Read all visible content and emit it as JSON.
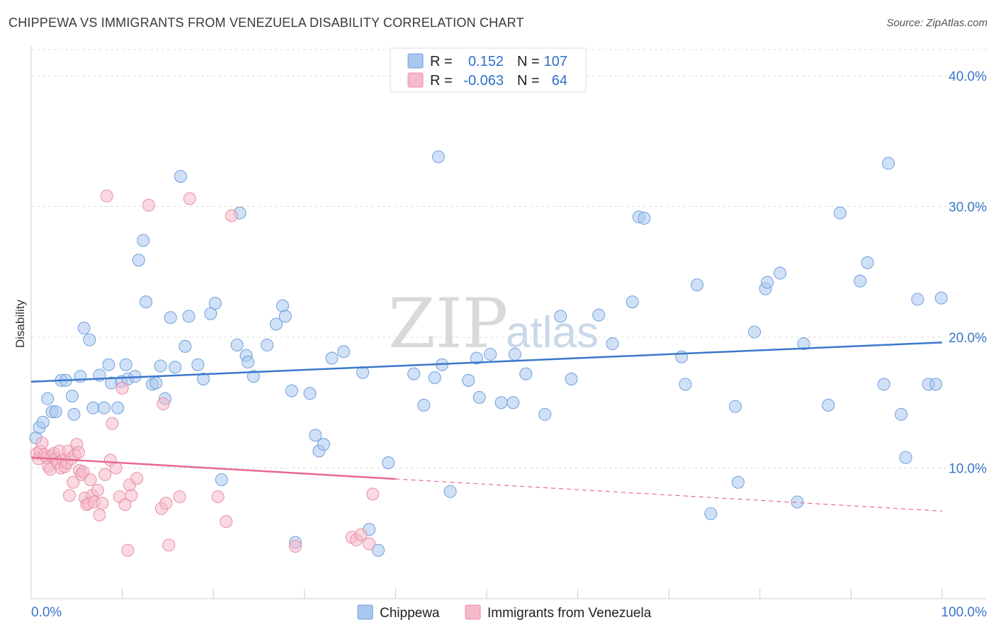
{
  "header": {
    "title": "CHIPPEWA VS IMMIGRANTS FROM VENEZUELA DISABILITY CORRELATION CHART",
    "source": "Source: ZipAtlas.com"
  },
  "watermark": {
    "zip": "ZIP",
    "atlas": "atlas"
  },
  "legend_box": {
    "rows": [
      {
        "r_label": "R =",
        "r_value": "0.152",
        "n_label": "N =",
        "n_value": "107",
        "color": "#a9c8f0"
      },
      {
        "r_label": "R =",
        "r_value": "-0.063",
        "n_label": "N =",
        "n_value": "64",
        "color": "#f6b9cc"
      }
    ]
  },
  "bottom_legend": [
    {
      "label": "Chippewa",
      "color": "#a9c8f0"
    },
    {
      "label": "Immigrants from Venezuela",
      "color": "#f6b9cc"
    }
  ],
  "chart_data": {
    "type": "scatter",
    "title": "CHIPPEWA VS IMMIGRANTS FROM VENEZUELA DISABILITY CORRELATION CHART",
    "xlabel": "",
    "ylabel": "Disability",
    "xlim": [
      0,
      100
    ],
    "ylim": [
      0,
      42
    ],
    "x_tick_labels": [
      "0.0%",
      "100.0%"
    ],
    "y_ticks": [
      10,
      20,
      30,
      40
    ],
    "y_tick_labels": [
      "10.0%",
      "20.0%",
      "30.0%",
      "40.0%"
    ],
    "grid": true,
    "colors": {
      "blue": "#3a78c9",
      "blue_fill": "#a9c8f0",
      "pink": "#e8698f",
      "pink_fill": "#f6b9cc"
    },
    "series": [
      {
        "name": "Chippewa",
        "color": "#3a78c9",
        "trend": {
          "x0": 0,
          "y0": 16.6,
          "x1": 100,
          "y1": 19.6,
          "dashed_from": null
        },
        "points": [
          [
            0.5,
            12.3
          ],
          [
            0.9,
            13.1
          ],
          [
            1.3,
            13.5
          ],
          [
            1.8,
            15.3
          ],
          [
            2.3,
            14.3
          ],
          [
            2.7,
            14.3
          ],
          [
            3.3,
            16.7
          ],
          [
            3.8,
            16.7
          ],
          [
            4.5,
            15.5
          ],
          [
            4.7,
            14.1
          ],
          [
            5.4,
            17.0
          ],
          [
            5.8,
            20.7
          ],
          [
            6.4,
            19.8
          ],
          [
            6.8,
            14.6
          ],
          [
            7.5,
            17.1
          ],
          [
            8.0,
            14.6
          ],
          [
            8.5,
            17.9
          ],
          [
            8.8,
            16.5
          ],
          [
            9.5,
            14.6
          ],
          [
            9.9,
            16.6
          ],
          [
            10.4,
            17.9
          ],
          [
            10.6,
            16.8
          ],
          [
            11.4,
            17.0
          ],
          [
            11.8,
            25.9
          ],
          [
            12.3,
            27.4
          ],
          [
            12.6,
            22.7
          ],
          [
            13.3,
            16.4
          ],
          [
            13.7,
            16.5
          ],
          [
            14.2,
            17.8
          ],
          [
            14.7,
            15.3
          ],
          [
            15.3,
            21.5
          ],
          [
            15.8,
            17.7
          ],
          [
            16.4,
            32.3
          ],
          [
            16.9,
            19.3
          ],
          [
            17.3,
            21.6
          ],
          [
            18.3,
            17.9
          ],
          [
            18.9,
            16.8
          ],
          [
            19.7,
            21.8
          ],
          [
            20.2,
            22.6
          ],
          [
            20.9,
            9.1
          ],
          [
            22.6,
            19.4
          ],
          [
            22.9,
            29.5
          ],
          [
            23.6,
            18.6
          ],
          [
            23.8,
            18.1
          ],
          [
            24.4,
            17.0
          ],
          [
            25.9,
            19.4
          ],
          [
            26.9,
            21.0
          ],
          [
            27.6,
            22.4
          ],
          [
            27.9,
            21.6
          ],
          [
            28.6,
            15.9
          ],
          [
            29.0,
            4.3
          ],
          [
            30.6,
            15.7
          ],
          [
            31.2,
            12.5
          ],
          [
            31.6,
            11.3
          ],
          [
            32.1,
            11.8
          ],
          [
            33.0,
            18.4
          ],
          [
            34.3,
            18.9
          ],
          [
            36.4,
            17.3
          ],
          [
            37.1,
            5.3
          ],
          [
            38.1,
            3.7
          ],
          [
            39.2,
            10.4
          ],
          [
            42.0,
            17.2
          ],
          [
            43.1,
            14.8
          ],
          [
            44.3,
            16.9
          ],
          [
            44.7,
            33.8
          ],
          [
            45.1,
            17.9
          ],
          [
            46.0,
            8.2
          ],
          [
            48.0,
            16.7
          ],
          [
            48.9,
            18.4
          ],
          [
            49.2,
            15.4
          ],
          [
            50.4,
            18.7
          ],
          [
            51.6,
            15.0
          ],
          [
            52.9,
            15.0
          ],
          [
            53.1,
            18.7
          ],
          [
            54.3,
            17.2
          ],
          [
            56.4,
            14.1
          ],
          [
            58.1,
            21.6
          ],
          [
            59.3,
            16.8
          ],
          [
            62.3,
            21.7
          ],
          [
            63.8,
            19.5
          ],
          [
            66.0,
            22.7
          ],
          [
            66.7,
            29.2
          ],
          [
            67.3,
            29.1
          ],
          [
            71.4,
            18.5
          ],
          [
            71.8,
            16.4
          ],
          [
            73.1,
            24.0
          ],
          [
            74.6,
            6.5
          ],
          [
            77.3,
            14.7
          ],
          [
            77.6,
            8.9
          ],
          [
            79.4,
            20.4
          ],
          [
            80.6,
            23.7
          ],
          [
            80.8,
            24.2
          ],
          [
            82.2,
            24.9
          ],
          [
            84.1,
            7.4
          ],
          [
            84.8,
            19.5
          ],
          [
            87.5,
            14.8
          ],
          [
            88.8,
            29.5
          ],
          [
            91.0,
            24.3
          ],
          [
            91.8,
            25.7
          ],
          [
            93.6,
            16.4
          ],
          [
            94.1,
            33.3
          ],
          [
            95.5,
            14.1
          ],
          [
            96.0,
            10.8
          ],
          [
            97.3,
            22.9
          ],
          [
            98.5,
            16.4
          ],
          [
            99.3,
            16.4
          ],
          [
            99.9,
            23.0
          ]
        ]
      },
      {
        "name": "Immigrants from Venezuela",
        "color": "#e8698f",
        "trend": {
          "x0": 0,
          "y0": 10.8,
          "x1": 100,
          "y1": 6.7,
          "dashed_from": 40
        },
        "points": [
          [
            0.6,
            11.1
          ],
          [
            0.8,
            10.7
          ],
          [
            1.0,
            11.3
          ],
          [
            1.2,
            11.9
          ],
          [
            1.5,
            11.0
          ],
          [
            1.7,
            10.8
          ],
          [
            1.9,
            10.1
          ],
          [
            2.1,
            9.9
          ],
          [
            2.3,
            10.9
          ],
          [
            2.5,
            11.1
          ],
          [
            2.7,
            10.7
          ],
          [
            2.9,
            10.4
          ],
          [
            3.1,
            11.3
          ],
          [
            3.3,
            10.0
          ],
          [
            3.5,
            10.6
          ],
          [
            3.7,
            10.1
          ],
          [
            3.9,
            10.4
          ],
          [
            4.1,
            11.3
          ],
          [
            4.2,
            7.9
          ],
          [
            4.4,
            10.7
          ],
          [
            4.6,
            8.9
          ],
          [
            4.8,
            11.0
          ],
          [
            5.0,
            11.8
          ],
          [
            5.2,
            11.2
          ],
          [
            5.3,
            9.8
          ],
          [
            5.5,
            9.5
          ],
          [
            5.7,
            9.7
          ],
          [
            5.9,
            7.7
          ],
          [
            6.1,
            7.2
          ],
          [
            6.3,
            7.3
          ],
          [
            6.5,
            9.1
          ],
          [
            6.7,
            7.9
          ],
          [
            6.9,
            7.4
          ],
          [
            7.3,
            8.3
          ],
          [
            7.5,
            6.4
          ],
          [
            7.8,
            7.3
          ],
          [
            8.1,
            9.5
          ],
          [
            8.3,
            30.8
          ],
          [
            8.7,
            10.6
          ],
          [
            8.9,
            13.4
          ],
          [
            9.3,
            10.0
          ],
          [
            9.7,
            7.8
          ],
          [
            10.0,
            16.1
          ],
          [
            10.3,
            7.2
          ],
          [
            10.6,
            3.7
          ],
          [
            10.8,
            8.7
          ],
          [
            11.0,
            7.9
          ],
          [
            11.6,
            9.2
          ],
          [
            12.9,
            30.1
          ],
          [
            14.3,
            6.9
          ],
          [
            14.5,
            14.9
          ],
          [
            14.8,
            7.3
          ],
          [
            15.1,
            4.1
          ],
          [
            16.3,
            7.8
          ],
          [
            17.4,
            30.6
          ],
          [
            20.5,
            7.8
          ],
          [
            21.4,
            5.9
          ],
          [
            22.0,
            29.3
          ],
          [
            29.0,
            4.0
          ],
          [
            35.2,
            4.7
          ],
          [
            35.7,
            4.5
          ],
          [
            36.2,
            4.9
          ],
          [
            37.1,
            4.2
          ],
          [
            37.5,
            8.0
          ]
        ]
      }
    ]
  }
}
